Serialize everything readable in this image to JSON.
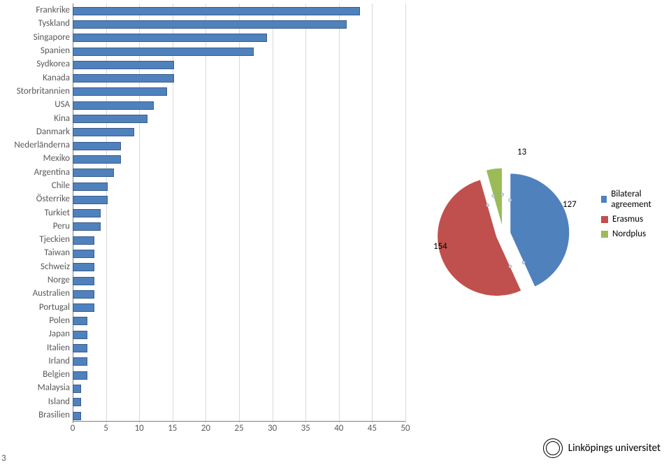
{
  "bar_chart": {
    "type": "bar",
    "xlim": [
      0,
      50
    ],
    "xtick_step": 5,
    "bar_color": "#4f81bd",
    "bar_border": "#385d8a",
    "background_color": "#ffffff",
    "grid_color": "#d9d9d9",
    "label_fontsize": 13,
    "label_color": "#595959",
    "categories": [
      "Frankrike",
      "Tyskland",
      "Singapore",
      "Spanien",
      "Sydkorea",
      "Kanada",
      "Storbritannien",
      "USA",
      "Kina",
      "Danmark",
      "Nederländerna",
      "Mexiko",
      "Argentina",
      "Chile",
      "Österrike",
      "Turkiet",
      "Peru",
      "Tjeckien",
      "Taiwan",
      "Schweiz",
      "Norge",
      "Australien",
      "Portugal",
      "Polen",
      "Japan",
      "Italien",
      "Irland",
      "Belgien",
      "Malaysia",
      "Island",
      "Brasilien"
    ],
    "values": [
      43,
      41,
      29,
      27,
      15,
      15,
      14,
      12,
      11,
      9,
      7,
      7,
      6,
      5,
      5,
      4,
      4,
      3,
      3,
      3,
      3,
      3,
      3,
      2,
      2,
      2,
      2,
      2,
      1,
      1,
      1
    ]
  },
  "pie_chart": {
    "type": "pie",
    "slices": [
      {
        "name": "Bilateral agreement",
        "value": 127,
        "color": "#4f81bd"
      },
      {
        "name": "Erasmus",
        "value": 154,
        "color": "#c0504d"
      },
      {
        "name": "Nordplus",
        "value": 13,
        "color": "#9bbb59"
      }
    ],
    "label_fontsize": 13,
    "exploded": true,
    "background_color": "#ffffff"
  },
  "legend": {
    "items": [
      {
        "label": "Bilateral agreement",
        "color": "#4f81bd"
      },
      {
        "label": "Erasmus",
        "color": "#c0504d"
      },
      {
        "label": "Nordplus",
        "color": "#9bbb59"
      }
    ]
  },
  "pie_labels": {
    "bilateral": "127",
    "erasmus": "154",
    "nordplus": "13"
  },
  "footer": {
    "page_number": "3",
    "logo_text": "Linköpings universitet"
  }
}
